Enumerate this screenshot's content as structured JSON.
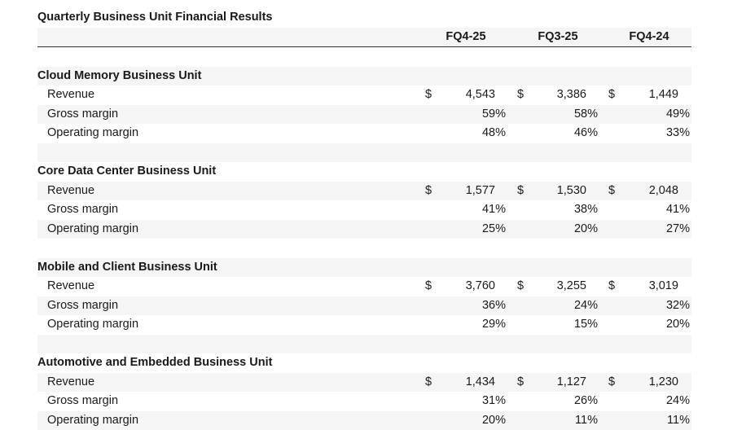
{
  "title": "Quarterly Business Unit Financial Results",
  "columns": [
    "FQ4-25",
    "FQ3-25",
    "FQ4-24"
  ],
  "currency_symbol": "$",
  "sections": [
    {
      "name": "Cloud Memory Business Unit",
      "rows": [
        {
          "label": "Revenue",
          "values": [
            "4,543",
            "3,386",
            "1,449"
          ],
          "currency": true
        },
        {
          "label": "Gross margin",
          "values": [
            "59%",
            "58%",
            "49%"
          ]
        },
        {
          "label": "Operating margin",
          "values": [
            "48%",
            "46%",
            "33%"
          ]
        }
      ]
    },
    {
      "name": "Core Data Center Business Unit",
      "rows": [
        {
          "label": "Revenue",
          "values": [
            "1,577",
            "1,530",
            "2,048"
          ],
          "currency": true
        },
        {
          "label": "Gross margin",
          "values": [
            "41%",
            "38%",
            "41%"
          ]
        },
        {
          "label": "Operating margin",
          "values": [
            "25%",
            "20%",
            "27%"
          ]
        }
      ]
    },
    {
      "name": "Mobile and Client Business Unit",
      "rows": [
        {
          "label": "Revenue",
          "values": [
            "3,760",
            "3,255",
            "3,019"
          ],
          "currency": true
        },
        {
          "label": "Gross margin",
          "values": [
            "36%",
            "24%",
            "32%"
          ]
        },
        {
          "label": "Operating margin",
          "values": [
            "29%",
            "15%",
            "20%"
          ]
        }
      ]
    },
    {
      "name": "Automotive and Embedded Business Unit",
      "rows": [
        {
          "label": "Revenue",
          "values": [
            "1,434",
            "1,127",
            "1,230"
          ],
          "currency": true
        },
        {
          "label": "Gross margin",
          "values": [
            "31%",
            "26%",
            "24%"
          ]
        },
        {
          "label": "Operating margin",
          "values": [
            "20%",
            "11%",
            "11%"
          ]
        }
      ]
    }
  ]
}
